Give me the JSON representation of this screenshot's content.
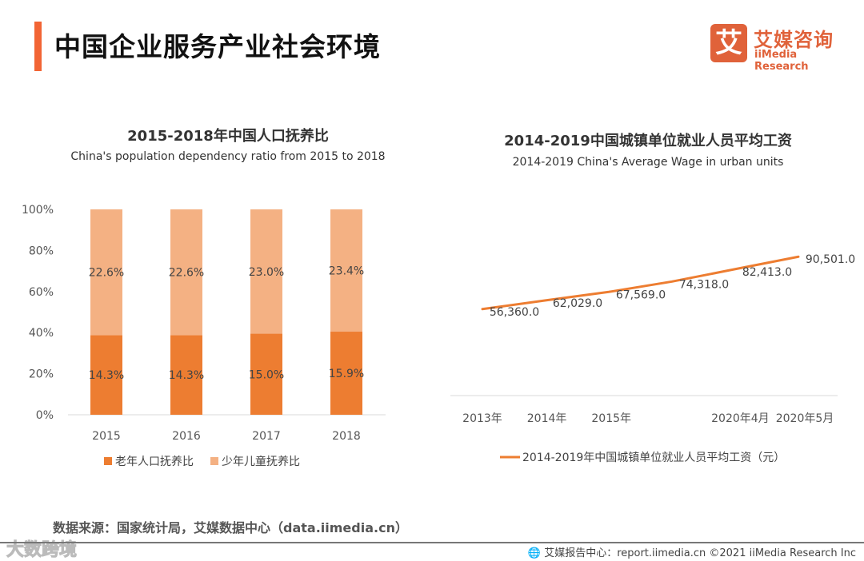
{
  "header": {
    "title": "中国企业服务产业社会环境"
  },
  "logo": {
    "mark": "艾",
    "cn": "艾媒咨询",
    "en": "iiMedia Research"
  },
  "source": "数据来源：国家统计局，艾媒数据中心（data.iimedia.cn）",
  "footer": {
    "text": "艾媒报告中心：report.iimedia.cn  ©2021  iiMedia Research  Inc",
    "icon": "globe-icon"
  },
  "watermark": "大数跨境",
  "chart_data": [
    {
      "type": "bar",
      "stacked": true,
      "normalized": true,
      "title": "2015-2018年中国人口抚养比",
      "subtitle": "China's population dependency ratio from 2015 to 2018",
      "categories": [
        "2015",
        "2016",
        "2017",
        "2018"
      ],
      "yticks": [
        "0%",
        "20%",
        "40%",
        "60%",
        "80%",
        "100%"
      ],
      "ylim": [
        0,
        100
      ],
      "series": [
        {
          "name": "老年人口抚养比",
          "values": [
            14.3,
            14.3,
            15.0,
            15.9
          ],
          "labels": [
            "14.3%",
            "14.3%",
            "15.0%",
            "15.9%"
          ],
          "color": "#ED7D31"
        },
        {
          "name": "少年儿童抚养比",
          "values": [
            22.6,
            22.6,
            23.0,
            23.4
          ],
          "labels": [
            "22.6%",
            "22.6%",
            "23.0%",
            "23.4%"
          ],
          "color": "#F4B183"
        }
      ],
      "legend": "bottom"
    },
    {
      "type": "line",
      "title": "2014-2019中国城镇单位就业人员平均工资",
      "subtitle": "2014-2019 China's Average Wage in urban units",
      "categories": [
        "2013年",
        "2014年",
        "2015年",
        "",
        "2020年4月",
        "2020年5月"
      ],
      "ylim": [
        0,
        100000
      ],
      "series": [
        {
          "name": "2014-2019年中国城镇单位就业人员平均工资（元）",
          "values": [
            56360,
            62029,
            67569,
            74318,
            82413,
            90501
          ],
          "labels": [
            "56,360.0",
            "62,029.0",
            "67,569.0",
            "74,318.0",
            "82,413.0",
            "90,501.0"
          ],
          "color": "#ED7D31"
        }
      ],
      "legend": "bottom"
    }
  ]
}
